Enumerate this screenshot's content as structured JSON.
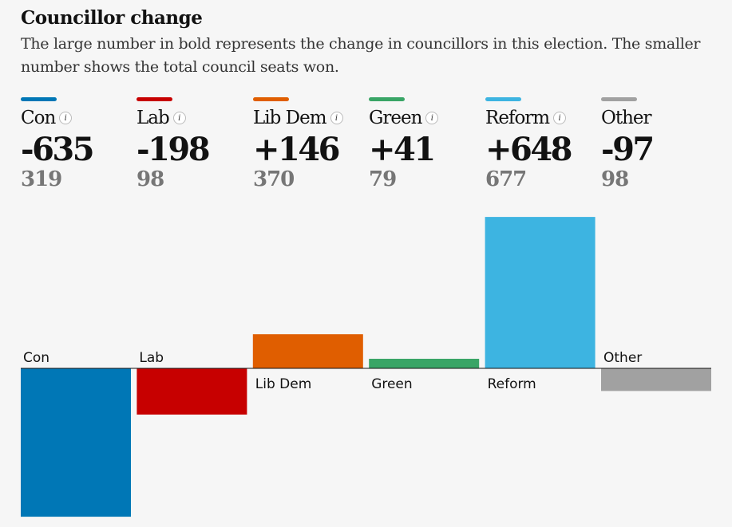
{
  "header": {
    "title": "Councillor change",
    "subtitle": "The large number in bold represents the change in councillors in this election. The smaller number shows the total council seats won."
  },
  "parties": [
    {
      "name": "Con",
      "change": "-635",
      "seats": "319",
      "color": "#0077b6",
      "has_info": true
    },
    {
      "name": "Lab",
      "change": "-198",
      "seats": "98",
      "color": "#c70000",
      "has_info": true
    },
    {
      "name": "Lib Dem",
      "change": "+146",
      "seats": "370",
      "color": "#e05e00",
      "has_info": true
    },
    {
      "name": "Green",
      "change": "+41",
      "seats": "79",
      "color": "#39a566",
      "has_info": true
    },
    {
      "name": "Reform",
      "change": "+648",
      "seats": "677",
      "color": "#3db4e1",
      "has_info": true
    },
    {
      "name": "Other",
      "change": "-97",
      "seats": "98",
      "color": "#a1a1a1",
      "has_info": false
    }
  ],
  "chart_data": {
    "type": "bar",
    "categories": [
      "Con",
      "Lab",
      "Lib Dem",
      "Green",
      "Reform",
      "Other"
    ],
    "values": [
      -635,
      -198,
      146,
      41,
      648,
      -97
    ],
    "colors": [
      "#0077b6",
      "#c70000",
      "#e05e00",
      "#39a566",
      "#3db4e1",
      "#a1a1a1"
    ],
    "title": "Councillor change",
    "xlabel": "",
    "ylabel": "",
    "grid": false
  }
}
